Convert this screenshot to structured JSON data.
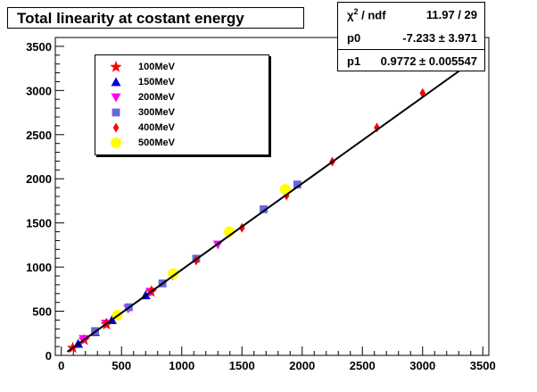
{
  "chart_data": {
    "type": "scatter",
    "title": "Total linearity at costant energy",
    "xlim": [
      -50,
      3550
    ],
    "ylim": [
      0,
      3600
    ],
    "x_ticks": [
      0,
      500,
      1000,
      1500,
      2000,
      2500,
      3000,
      3500
    ],
    "y_ticks": [
      0,
      500,
      1000,
      1500,
      2000,
      2500,
      3000,
      3500
    ],
    "x_tick_labels": [
      "0",
      "500",
      "1000",
      "1500",
      "2000",
      "2500",
      "3000",
      "3500"
    ],
    "y_tick_labels": [
      "0",
      "500",
      "1000",
      "1500",
      "2000",
      "2500",
      "3000",
      "3500"
    ],
    "grid": false,
    "legend_position": "top-left",
    "fit": {
      "type": "linear",
      "p0": -7.233,
      "p1": 0.9772,
      "color": "#000000"
    },
    "stats": {
      "chi2_label": "χ",
      "chi2_sup": "2",
      "chi2_suffix": " / ndf",
      "chi2_value": "11.97 / 29",
      "p0_label": "p0",
      "p0_value": "-7.233 ± 3.971",
      "p1_label": "p1",
      "p1_value": "0.9772 ± 0.005547"
    },
    "series": [
      {
        "name": "100MeV",
        "marker": "star",
        "color": "#ff0000",
        "points": [
          [
            95,
            85
          ],
          [
            190,
            175
          ],
          [
            375,
            350
          ],
          [
            745,
            720
          ]
        ]
      },
      {
        "name": "150MeV",
        "marker": "triangle-up",
        "color": "#0000dd",
        "points": [
          [
            140,
            130
          ],
          [
            280,
            265
          ],
          [
            420,
            400
          ],
          [
            700,
            680
          ]
        ]
      },
      {
        "name": "200MeV",
        "marker": "triangle-down",
        "color": "#ff00ff",
        "points": [
          [
            185,
            185
          ],
          [
            370,
            360
          ],
          [
            555,
            530
          ],
          [
            740,
            720
          ],
          [
            925,
            905
          ],
          [
            1300,
            1255
          ]
        ]
      },
      {
        "name": "300MeV",
        "marker": "square",
        "color": "#6666dd",
        "points": [
          [
            280,
            275
          ],
          [
            560,
            545
          ],
          [
            840,
            815
          ],
          [
            1120,
            1095
          ],
          [
            1680,
            1655
          ],
          [
            1960,
            1935
          ]
        ]
      },
      {
        "name": "400MeV",
        "marker": "diamond",
        "color": "#ff0000",
        "points": [
          [
            375,
            370
          ],
          [
            750,
            735
          ],
          [
            1120,
            1075
          ],
          [
            1500,
            1445
          ],
          [
            1870,
            1810
          ],
          [
            2250,
            2195
          ],
          [
            2620,
            2580
          ],
          [
            3000,
            2970
          ]
        ]
      },
      {
        "name": "500MeV",
        "marker": "circle",
        "color": "#ffff00",
        "points": [
          [
            465,
            455
          ],
          [
            930,
            925
          ],
          [
            1395,
            1400
          ],
          [
            1860,
            1880
          ]
        ]
      }
    ]
  }
}
